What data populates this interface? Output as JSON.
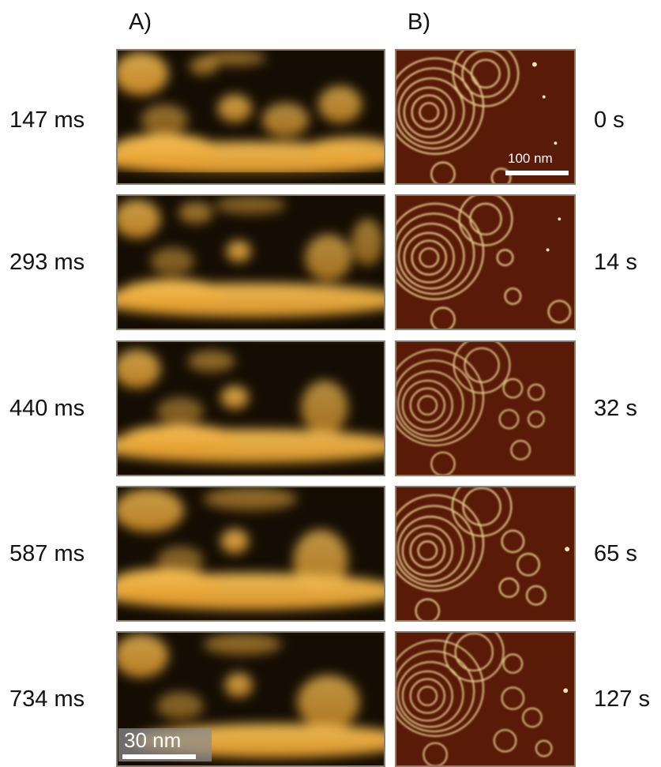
{
  "panels": {
    "a_label": "A)",
    "b_label": "B)"
  },
  "rows": [
    {
      "left_time": "147 ms",
      "right_time": "0 s"
    },
    {
      "left_time": "293 ms",
      "right_time": "14 s"
    },
    {
      "left_time": "440 ms",
      "right_time": "32 s"
    },
    {
      "left_time": "587 ms",
      "right_time": "65 s"
    },
    {
      "left_time": "734 ms",
      "right_time": "127 s"
    }
  ],
  "scalebars": {
    "panel_b": "100 nm",
    "panel_a": "30 nm"
  },
  "colors": {
    "panel_a_dark": "#150d03",
    "panel_a_bright": "#f0b040",
    "panel_b_dark": "#5a1a08",
    "panel_b_bright": "#f2dc9a"
  }
}
